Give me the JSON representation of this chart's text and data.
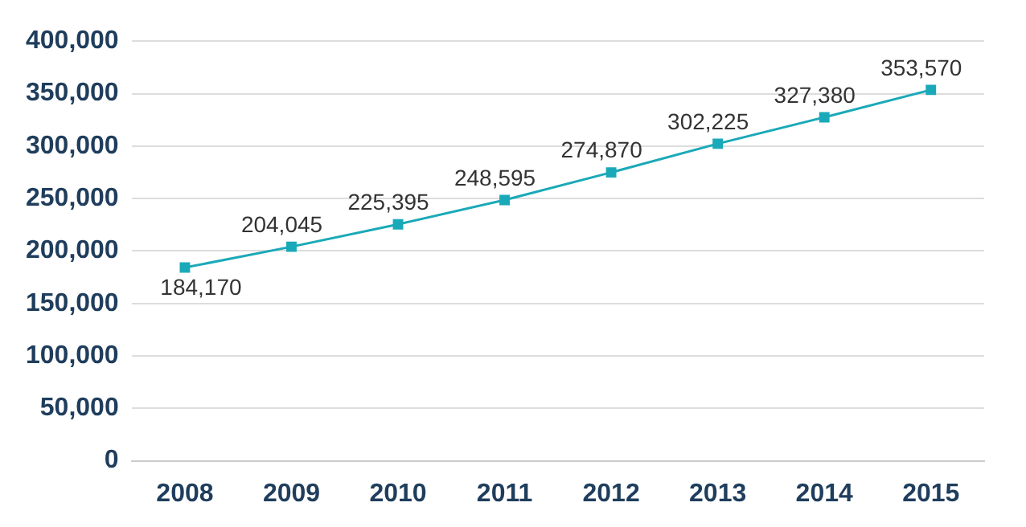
{
  "chart_data": {
    "type": "line",
    "categories": [
      "2008",
      "2009",
      "2010",
      "2011",
      "2012",
      "2013",
      "2014",
      "2015"
    ],
    "series": [
      {
        "color": "#1aa9b8",
        "values": [
          184170,
          204045,
          225395,
          248595,
          274870,
          302225,
          327380,
          353570
        ],
        "value_labels": [
          "184,170",
          "204,045",
          "225,395",
          "248,595",
          "274,870",
          "302,225",
          "327,380",
          "353,570"
        ]
      }
    ],
    "ylim": [
      0,
      400000
    ],
    "yticks": [
      {
        "value": 0,
        "label": "0"
      },
      {
        "value": 50000,
        "label": "50,000"
      },
      {
        "value": 100000,
        "label": "100,000"
      },
      {
        "value": 150000,
        "label": "150,000"
      },
      {
        "value": 200000,
        "label": "200,000"
      },
      {
        "value": 250000,
        "label": "250,000"
      },
      {
        "value": 300000,
        "label": "300,000"
      },
      {
        "value": 350000,
        "label": "350,000"
      },
      {
        "value": 400000,
        "label": "400,000"
      }
    ],
    "grid": "y",
    "marker": "square",
    "line_style": "solid"
  }
}
